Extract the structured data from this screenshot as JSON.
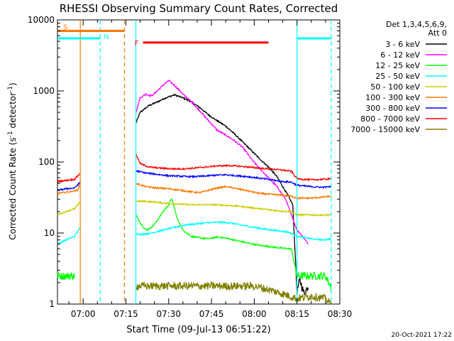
{
  "chart_data": {
    "type": "line",
    "title": "RHESSI Observing Summary Count Rates, Corrected",
    "xlabel": "Start Time (09-Jul-13 06:51:22)",
    "ylabel": "Corrected Count Rate (s⁻¹ detector⁻¹)",
    "yscale": "log",
    "ylim": [
      1,
      10000
    ],
    "xlim_minutes_after_0700": [
      -9,
      90
    ],
    "x_ticks": [
      {
        "m": 0,
        "label": "07:00"
      },
      {
        "m": 15,
        "label": "07:15"
      },
      {
        "m": 30,
        "label": "07:30"
      },
      {
        "m": 45,
        "label": "07:45"
      },
      {
        "m": 60,
        "label": "08:00"
      },
      {
        "m": 75,
        "label": "08:15"
      },
      {
        "m": 90,
        "label": "08:30"
      }
    ],
    "y_ticks": [
      {
        "v": 1,
        "label": "1"
      },
      {
        "v": 10,
        "label": "10"
      },
      {
        "v": 100,
        "label": "100"
      },
      {
        "v": 1000,
        "label": "1000"
      },
      {
        "v": 10000,
        "label": "10000"
      }
    ],
    "legend_header": [
      "Det 1,3,4,5,6,9,",
      "Att 0"
    ],
    "legend_placement": "right",
    "series": [
      {
        "name": "3 - 6 keV",
        "color": "#000000",
        "segments": [
          [
            [
              18.5,
              350
            ],
            [
              20,
              500
            ],
            [
              23,
              620
            ],
            [
              26,
              700
            ],
            [
              29,
              800
            ],
            [
              32,
              880
            ],
            [
              35,
              800
            ],
            [
              38,
              700
            ],
            [
              41,
              580
            ],
            [
              44,
              460
            ],
            [
              47,
              380
            ],
            [
              50,
              320
            ],
            [
              53,
              250
            ],
            [
              56,
              190
            ],
            [
              59,
              145
            ],
            [
              62,
              110
            ],
            [
              65,
              85
            ],
            [
              68,
              62
            ],
            [
              70,
              45
            ],
            [
              72,
              33
            ],
            [
              73.5,
              25
            ],
            [
              75,
              1.5
            ],
            [
              76,
              2.2
            ],
            [
              77.5,
              1.4
            ],
            [
              79,
              1.8
            ]
          ]
        ]
      },
      {
        "name": "6 - 12 keV",
        "color": "#ff00ff",
        "segments": [
          [
            [
              18.5,
              500
            ],
            [
              20,
              800
            ],
            [
              22,
              900
            ],
            [
              24,
              850
            ],
            [
              26,
              1000
            ],
            [
              28,
              1200
            ],
            [
              30,
              1400
            ],
            [
              32,
              1200
            ],
            [
              35,
              900
            ],
            [
              38,
              700
            ],
            [
              41,
              520
            ],
            [
              44,
              380
            ],
            [
              47,
              280
            ],
            [
              50,
              240
            ],
            [
              53,
              200
            ],
            [
              56,
              160
            ],
            [
              59,
              110
            ],
            [
              62,
              80
            ],
            [
              65,
              60
            ],
            [
              68,
              45
            ],
            [
              71,
              30
            ],
            [
              73,
              18
            ],
            [
              75,
              11
            ],
            [
              77,
              9
            ],
            [
              79,
              7
            ]
          ]
        ]
      },
      {
        "name": "12 - 25 keV",
        "color": "#00ff00",
        "segments": [
          [
            [
              -9,
              2.5
            ],
            [
              -3,
              2.5
            ]
          ],
          [
            [
              18.5,
              18
            ],
            [
              20,
              14
            ],
            [
              22,
              11
            ],
            [
              24,
              12
            ],
            [
              26,
              15
            ],
            [
              28,
              20
            ],
            [
              30,
              25
            ],
            [
              31,
              31
            ],
            [
              33,
              16
            ],
            [
              35,
              11
            ],
            [
              38,
              9
            ],
            [
              41,
              8.5
            ],
            [
              44,
              8.3
            ],
            [
              47,
              8.8
            ],
            [
              50,
              8.5
            ],
            [
              54,
              7.8
            ],
            [
              58,
              7.2
            ],
            [
              62,
              6.7
            ],
            [
              66,
              6.4
            ],
            [
              70,
              6.1
            ],
            [
              73,
              6
            ],
            [
              75,
              2.5
            ],
            [
              80,
              2.5
            ],
            [
              85,
              2.5
            ],
            [
              87,
              1.7
            ]
          ]
        ]
      },
      {
        "name": "25 - 50 keV",
        "color": "#00ffff",
        "segments": [
          [
            [
              -9,
              7
            ],
            [
              -6,
              8
            ],
            [
              -3,
              9
            ],
            [
              -1,
              12
            ]
          ],
          [
            [
              18.5,
              10
            ],
            [
              20,
              9.5
            ],
            [
              24,
              10
            ],
            [
              28,
              11
            ],
            [
              32,
              12
            ],
            [
              36,
              13
            ],
            [
              40,
              13.5
            ],
            [
              44,
              14
            ],
            [
              48,
              14.2
            ],
            [
              52,
              13.8
            ],
            [
              56,
              12.8
            ],
            [
              60,
              12
            ],
            [
              64,
              11.3
            ],
            [
              68,
              10.8
            ],
            [
              72,
              10.3
            ],
            [
              75,
              9
            ],
            [
              80,
              8.3
            ],
            [
              84,
              8
            ],
            [
              87,
              8.3
            ]
          ]
        ]
      },
      {
        "name": "50 - 100 keV",
        "color": "#cccc00",
        "segments": [
          [
            [
              -9,
              18
            ],
            [
              -6,
              20
            ],
            [
              -3,
              22
            ],
            [
              -1,
              27
            ]
          ],
          [
            [
              18.5,
              28
            ],
            [
              22,
              28
            ],
            [
              26,
              27
            ],
            [
              30,
              26
            ],
            [
              34,
              25.5
            ],
            [
              38,
              25
            ],
            [
              42,
              25
            ],
            [
              46,
              25
            ],
            [
              50,
              24.5
            ],
            [
              54,
              24
            ],
            [
              58,
              23
            ],
            [
              62,
              22
            ],
            [
              66,
              21
            ],
            [
              70,
              20.3
            ],
            [
              73,
              20
            ],
            [
              75,
              18
            ],
            [
              80,
              18
            ],
            [
              84,
              17.8
            ],
            [
              87,
              18
            ]
          ]
        ]
      },
      {
        "name": "100 - 300 keV",
        "color": "#ff7700",
        "segments": [
          [
            [
              -9,
              36
            ],
            [
              -5,
              38
            ],
            [
              -2,
              40
            ],
            [
              -1,
              50
            ]
          ],
          [
            [
              18.5,
              50
            ],
            [
              22,
              45
            ],
            [
              26,
              43
            ],
            [
              30,
              42
            ],
            [
              34,
              40
            ],
            [
              38,
              38
            ],
            [
              41,
              37
            ],
            [
              44,
              40
            ],
            [
              47,
              43
            ],
            [
              50,
              45
            ],
            [
              54,
              42
            ],
            [
              58,
              39
            ],
            [
              62,
              36
            ],
            [
              66,
              35
            ],
            [
              70,
              34
            ],
            [
              73,
              33
            ],
            [
              75,
              31
            ],
            [
              80,
              31
            ],
            [
              84,
              32
            ],
            [
              87,
              33
            ]
          ]
        ]
      },
      {
        "name": "300 - 800 keV",
        "color": "#0000ff",
        "segments": [
          [
            [
              -9,
              40
            ],
            [
              -6,
              42
            ],
            [
              -3,
              43
            ],
            [
              -1,
              52
            ]
          ],
          [
            [
              18.5,
              75
            ],
            [
              22,
              70
            ],
            [
              26,
              67
            ],
            [
              30,
              64
            ],
            [
              34,
              63
            ],
            [
              38,
              62
            ],
            [
              42,
              63
            ],
            [
              46,
              65
            ],
            [
              50,
              66
            ],
            [
              54,
              64
            ],
            [
              58,
              62
            ],
            [
              62,
              59
            ],
            [
              66,
              56
            ],
            [
              70,
              53
            ],
            [
              73,
              52
            ],
            [
              75,
              47
            ],
            [
              80,
              45
            ],
            [
              84,
              44
            ],
            [
              87,
              45
            ]
          ]
        ]
      },
      {
        "name": "800 - 7000 keV",
        "color": "#ff0000",
        "segments": [
          [
            [
              -9,
              53
            ],
            [
              -6,
              55
            ],
            [
              -3,
              57
            ],
            [
              -1,
              70
            ]
          ],
          [
            [
              18.5,
              130
            ],
            [
              20,
              95
            ],
            [
              23,
              85
            ],
            [
              27,
              82
            ],
            [
              31,
              80
            ],
            [
              35,
              80
            ],
            [
              39,
              82
            ],
            [
              43,
              85
            ],
            [
              47,
              88
            ],
            [
              51,
              89
            ],
            [
              55,
              87
            ],
            [
              59,
              84
            ],
            [
              63,
              81
            ],
            [
              67,
              79
            ],
            [
              71,
              76
            ],
            [
              73,
              74
            ],
            [
              75,
              58
            ],
            [
              80,
              56
            ],
            [
              84,
              57
            ],
            [
              87,
              58
            ]
          ]
        ]
      },
      {
        "name": "7000 - 15000 keV",
        "color": "#808000",
        "segments": [
          [
            [
              18.5,
              1.8
            ],
            [
              25,
              1.8
            ],
            [
              30,
              1.8
            ],
            [
              35,
              1.8
            ],
            [
              40,
              1.8
            ],
            [
              45,
              1.8
            ],
            [
              50,
              1.8
            ],
            [
              55,
              1.8
            ],
            [
              60,
              1.8
            ],
            [
              65,
              1.6
            ],
            [
              70,
              1.4
            ],
            [
              75,
              1.2
            ],
            [
              80,
              1.3
            ],
            [
              85,
              1.2
            ],
            [
              87,
              1
            ]
          ]
        ]
      }
    ],
    "annotations": {
      "S_label": "S",
      "N_label": "N",
      "F_label": "F",
      "S_bar": {
        "color": "#ff7700",
        "level": 7000,
        "range_m": [
          -9,
          14.5
        ]
      },
      "N_bar": {
        "color": "#00ffff",
        "level": 5500,
        "ranges_m": [
          [
            -9,
            6
          ],
          [
            75,
            87
          ]
        ]
      },
      "F_bar": {
        "color": "#ff0000",
        "level": 4800,
        "range_m": [
          21,
          65
        ]
      },
      "verticals": [
        {
          "m": -1,
          "color": "#ff7700",
          "dashed": false
        },
        {
          "m": 6,
          "color": "#00ffff",
          "dashed": true
        },
        {
          "m": 14.5,
          "color": "#ff7700",
          "dashed": true
        },
        {
          "m": 18.5,
          "color": "#00ffff",
          "dashed": false
        },
        {
          "m": 75,
          "color": "#00ffff",
          "dashed": false
        },
        {
          "m": 87,
          "color": "#00ffff",
          "dashed": true
        }
      ]
    },
    "footer_date": "20-Oct-2021 17:22"
  }
}
